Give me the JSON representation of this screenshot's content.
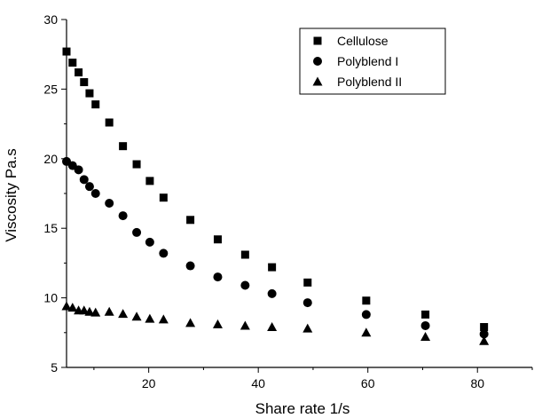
{
  "chart_data": {
    "type": "scatter",
    "title": "",
    "xlabel": "Share rate  1/s",
    "ylabel": "Viscosity  Pa.s",
    "xlim": [
      5,
      90
    ],
    "ylim": [
      5,
      30
    ],
    "x_ticks": [
      20,
      40,
      60,
      80
    ],
    "y_ticks": [
      5,
      10,
      15,
      20,
      25,
      30
    ],
    "x_tick_labels": [
      "20",
      "40",
      "60",
      "80"
    ],
    "y_tick_labels": [
      "5",
      "10",
      "15",
      "20",
      "25",
      "30"
    ],
    "grid": false,
    "legend_position": "top-right",
    "series": [
      {
        "name": "Cellulose",
        "marker": "square",
        "color": "#000000",
        "points": [
          [
            5.0,
            27.7
          ],
          [
            6.1,
            26.9
          ],
          [
            7.2,
            26.2
          ],
          [
            8.2,
            25.5
          ],
          [
            9.2,
            24.7
          ],
          [
            10.3,
            23.9
          ],
          [
            12.8,
            22.6
          ],
          [
            15.3,
            20.9
          ],
          [
            17.8,
            19.6
          ],
          [
            20.2,
            18.4
          ],
          [
            22.7,
            17.2
          ],
          [
            27.6,
            15.6
          ],
          [
            32.6,
            14.2
          ],
          [
            37.6,
            13.1
          ],
          [
            42.5,
            12.2
          ],
          [
            49.0,
            11.1
          ],
          [
            59.7,
            9.8
          ],
          [
            70.5,
            8.8
          ],
          [
            81.2,
            7.9
          ]
        ]
      },
      {
        "name": "Polyblend I",
        "marker": "circle",
        "color": "#000000",
        "points": [
          [
            5.0,
            19.8
          ],
          [
            6.1,
            19.5
          ],
          [
            7.2,
            19.2
          ],
          [
            8.2,
            18.5
          ],
          [
            9.2,
            18.0
          ],
          [
            10.3,
            17.5
          ],
          [
            12.8,
            16.8
          ],
          [
            15.3,
            15.9
          ],
          [
            17.8,
            14.7
          ],
          [
            20.2,
            14.0
          ],
          [
            22.7,
            13.2
          ],
          [
            27.6,
            12.3
          ],
          [
            32.6,
            11.5
          ],
          [
            37.6,
            10.9
          ],
          [
            42.5,
            10.3
          ],
          [
            49.0,
            9.65
          ],
          [
            59.7,
            8.8
          ],
          [
            70.5,
            8.0
          ],
          [
            81.2,
            7.4
          ]
        ]
      },
      {
        "name": "Polyblend II",
        "marker": "triangle",
        "color": "#000000",
        "points": [
          [
            5.0,
            9.4
          ],
          [
            6.1,
            9.3
          ],
          [
            7.2,
            9.1
          ],
          [
            8.2,
            9.1
          ],
          [
            9.2,
            9.0
          ],
          [
            10.3,
            8.95
          ],
          [
            12.8,
            9.0
          ],
          [
            15.3,
            8.85
          ],
          [
            17.8,
            8.65
          ],
          [
            20.2,
            8.5
          ],
          [
            22.7,
            8.45
          ],
          [
            27.6,
            8.2
          ],
          [
            32.6,
            8.1
          ],
          [
            37.6,
            8.0
          ],
          [
            42.5,
            7.9
          ],
          [
            49.0,
            7.8
          ],
          [
            59.7,
            7.5
          ],
          [
            70.5,
            7.2
          ],
          [
            81.2,
            6.9
          ]
        ]
      }
    ]
  }
}
